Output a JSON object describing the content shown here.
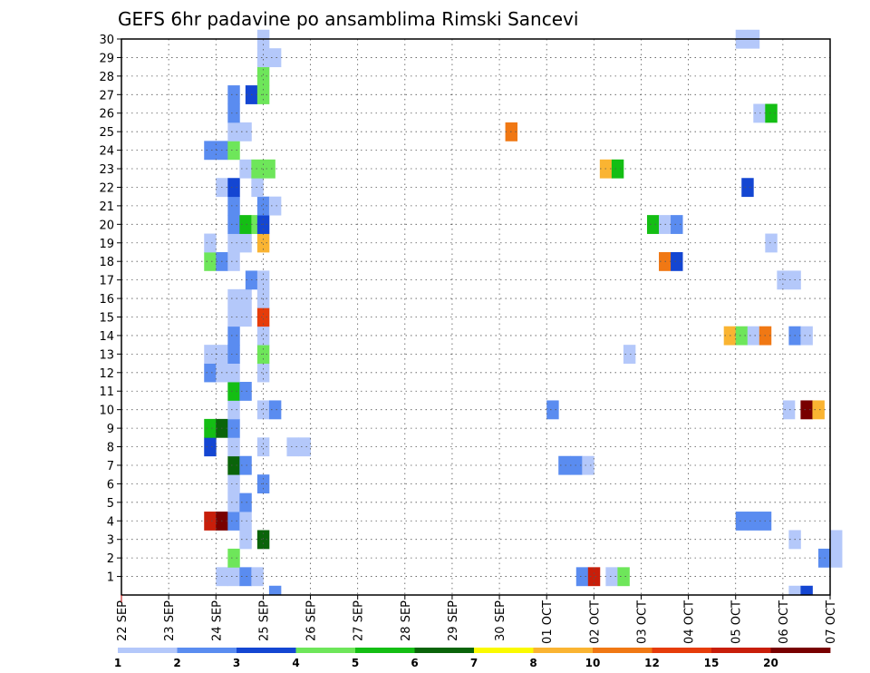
{
  "chart_data": {
    "type": "heatmap",
    "title": "GEFS 6hr padavine po ansamblima Rimski Sancevi",
    "xlabel": "",
    "ylabel": "",
    "x_ticks": [
      "22 SEP",
      "23 SEP",
      "24 SEP",
      "25 SEP",
      "26 SEP",
      "27 SEP",
      "28 SEP",
      "29 SEP",
      "30 SEP",
      "01 OCT",
      "02 OCT",
      "03 OCT",
      "04 OCT",
      "05 OCT",
      "06 OCT",
      "07 OCT"
    ],
    "x_range_days": [
      0,
      15
    ],
    "y_ticks": [
      1,
      2,
      3,
      4,
      5,
      6,
      7,
      8,
      9,
      10,
      11,
      12,
      13,
      14,
      15,
      16,
      17,
      18,
      19,
      20,
      21,
      22,
      23,
      24,
      25,
      26,
      27,
      28,
      29,
      30
    ],
    "grid": true,
    "colorbar": {
      "labels": [
        "1",
        "2",
        "3",
        "4",
        "5",
        "6",
        "7",
        "8",
        "10",
        "12",
        "15",
        "20"
      ],
      "colors": [
        "#b4c8fa",
        "#5a8cf0",
        "#1446d2",
        "#6ee65a",
        "#14be14",
        "#0a640a",
        "#fafa00",
        "#fab432",
        "#f07814",
        "#e63c0a",
        "#c81e0a",
        "#780000"
      ]
    },
    "cells": [
      {
        "m": 1,
        "d": 2.0,
        "c": 1
      },
      {
        "m": 1,
        "d": 2.25,
        "c": 1
      },
      {
        "m": 1,
        "d": 2.5,
        "c": 2
      },
      {
        "m": 1,
        "d": 2.75,
        "c": 1
      },
      {
        "m": 1,
        "d": 9.625,
        "c": 2
      },
      {
        "m": 1,
        "d": 9.875,
        "c": 11
      },
      {
        "m": 1,
        "d": 10.25,
        "c": 1
      },
      {
        "m": 1,
        "d": 10.5,
        "c": 4
      },
      {
        "m": 2,
        "d": 2.25,
        "c": 4
      },
      {
        "m": 2,
        "d": 14.75,
        "c": 2
      },
      {
        "m": 2,
        "d": 15.0,
        "c": 1
      },
      {
        "m": 3,
        "d": 2.5,
        "c": 1
      },
      {
        "m": 3,
        "d": 2.875,
        "c": 6
      },
      {
        "m": 3,
        "d": 14.125,
        "c": 1
      },
      {
        "m": 3,
        "d": 15.0,
        "c": 1
      },
      {
        "m": 4,
        "d": 1.75,
        "c": 11
      },
      {
        "m": 4,
        "d": 2.0,
        "c": 12
      },
      {
        "m": 4,
        "d": 2.25,
        "c": 2
      },
      {
        "m": 4,
        "d": 2.5,
        "c": 1
      },
      {
        "m": 4,
        "d": 13.0,
        "c": 2
      },
      {
        "m": 4,
        "d": 13.25,
        "c": 2
      },
      {
        "m": 4,
        "d": 13.5,
        "c": 2
      },
      {
        "m": 5,
        "d": 2.25,
        "c": 1
      },
      {
        "m": 5,
        "d": 2.5,
        "c": 2
      },
      {
        "m": 6,
        "d": 2.25,
        "c": 1
      },
      {
        "m": 6,
        "d": 2.875,
        "c": 2
      },
      {
        "m": 7,
        "d": 2.25,
        "c": 6
      },
      {
        "m": 7,
        "d": 2.5,
        "c": 2
      },
      {
        "m": 7,
        "d": 9.25,
        "c": 2
      },
      {
        "m": 7,
        "d": 9.5,
        "c": 2
      },
      {
        "m": 7,
        "d": 9.75,
        "c": 1
      },
      {
        "m": 8,
        "d": 1.75,
        "c": 3
      },
      {
        "m": 8,
        "d": 2.25,
        "c": 1
      },
      {
        "m": 8,
        "d": 2.875,
        "c": 1
      },
      {
        "m": 8,
        "d": 3.5,
        "c": 1
      },
      {
        "m": 8,
        "d": 3.75,
        "c": 1
      },
      {
        "m": 9,
        "d": 1.75,
        "c": 5
      },
      {
        "m": 9,
        "d": 2.0,
        "c": 6
      },
      {
        "m": 9,
        "d": 2.25,
        "c": 2
      },
      {
        "m": 10,
        "d": 2.25,
        "c": 1
      },
      {
        "m": 10,
        "d": 2.875,
        "c": 1
      },
      {
        "m": 10,
        "d": 3.125,
        "c": 2
      },
      {
        "m": 10,
        "d": 9.0,
        "c": 2
      },
      {
        "m": 10,
        "d": 14.0,
        "c": 1
      },
      {
        "m": 10,
        "d": 14.375,
        "c": 12
      },
      {
        "m": 10,
        "d": 14.625,
        "c": 8
      },
      {
        "m": 11,
        "d": 2.25,
        "c": 5
      },
      {
        "m": 11,
        "d": 2.5,
        "c": 2
      },
      {
        "m": 12,
        "d": 1.75,
        "c": 2
      },
      {
        "m": 12,
        "d": 2.0,
        "c": 1
      },
      {
        "m": 12,
        "d": 2.25,
        "c": 1
      },
      {
        "m": 12,
        "d": 2.875,
        "c": 1
      },
      {
        "m": 13,
        "d": 1.75,
        "c": 1
      },
      {
        "m": 13,
        "d": 2.0,
        "c": 1
      },
      {
        "m": 13,
        "d": 2.25,
        "c": 2
      },
      {
        "m": 13,
        "d": 2.875,
        "c": 4
      },
      {
        "m": 13,
        "d": 10.625,
        "c": 1
      },
      {
        "m": 14,
        "d": 2.25,
        "c": 2
      },
      {
        "m": 14,
        "d": 2.875,
        "c": 1
      },
      {
        "m": 14,
        "d": 12.75,
        "c": 8
      },
      {
        "m": 14,
        "d": 13.0,
        "c": 4
      },
      {
        "m": 14,
        "d": 13.25,
        "c": 1
      },
      {
        "m": 14,
        "d": 13.5,
        "c": 9
      },
      {
        "m": 14,
        "d": 14.125,
        "c": 2
      },
      {
        "m": 14,
        "d": 14.375,
        "c": 1
      },
      {
        "m": 15,
        "d": 2.25,
        "c": 1
      },
      {
        "m": 15,
        "d": 2.5,
        "c": 1
      },
      {
        "m": 15,
        "d": 2.875,
        "c": 10
      },
      {
        "m": 16,
        "d": 2.25,
        "c": 1
      },
      {
        "m": 16,
        "d": 2.5,
        "c": 1
      },
      {
        "m": 16,
        "d": 2.875,
        "c": 1
      },
      {
        "m": 17,
        "d": 2.625,
        "c": 2
      },
      {
        "m": 17,
        "d": 2.875,
        "c": 1
      },
      {
        "m": 17,
        "d": 13.875,
        "c": 1
      },
      {
        "m": 17,
        "d": 14.125,
        "c": 1
      },
      {
        "m": 18,
        "d": 1.75,
        "c": 4
      },
      {
        "m": 18,
        "d": 2.0,
        "c": 2
      },
      {
        "m": 18,
        "d": 2.25,
        "c": 1
      },
      {
        "m": 18,
        "d": 11.375,
        "c": 9
      },
      {
        "m": 18,
        "d": 11.625,
        "c": 3
      },
      {
        "m": 19,
        "d": 1.75,
        "c": 1
      },
      {
        "m": 19,
        "d": 2.25,
        "c": 1
      },
      {
        "m": 19,
        "d": 2.5,
        "c": 1
      },
      {
        "m": 19,
        "d": 2.875,
        "c": 8
      },
      {
        "m": 19,
        "d": 13.625,
        "c": 1
      },
      {
        "m": 20,
        "d": 2.25,
        "c": 2
      },
      {
        "m": 20,
        "d": 2.5,
        "c": 5
      },
      {
        "m": 20,
        "d": 2.75,
        "c": 4
      },
      {
        "m": 20,
        "d": 2.875,
        "c": 3
      },
      {
        "m": 20,
        "d": 11.125,
        "c": 5
      },
      {
        "m": 20,
        "d": 11.375,
        "c": 1
      },
      {
        "m": 20,
        "d": 11.625,
        "c": 2
      },
      {
        "m": 21,
        "d": 2.25,
        "c": 2
      },
      {
        "m": 21,
        "d": 2.875,
        "c": 2
      },
      {
        "m": 21,
        "d": 3.125,
        "c": 1
      },
      {
        "m": 22,
        "d": 2.0,
        "c": 1
      },
      {
        "m": 22,
        "d": 2.25,
        "c": 3
      },
      {
        "m": 22,
        "d": 2.75,
        "c": 1
      },
      {
        "m": 22,
        "d": 13.125,
        "c": 3
      },
      {
        "m": 23,
        "d": 2.5,
        "c": 1
      },
      {
        "m": 23,
        "d": 2.75,
        "c": 4
      },
      {
        "m": 23,
        "d": 3.0,
        "c": 4
      },
      {
        "m": 23,
        "d": 10.125,
        "c": 8
      },
      {
        "m": 23,
        "d": 10.375,
        "c": 5
      },
      {
        "m": 24,
        "d": 1.75,
        "c": 2
      },
      {
        "m": 24,
        "d": 2.0,
        "c": 2
      },
      {
        "m": 24,
        "d": 2.25,
        "c": 4
      },
      {
        "m": 25,
        "d": 2.25,
        "c": 1
      },
      {
        "m": 25,
        "d": 2.5,
        "c": 1
      },
      {
        "m": 25,
        "d": 8.125,
        "c": 9
      },
      {
        "m": 26,
        "d": 2.25,
        "c": 2
      },
      {
        "m": 26,
        "d": 13.375,
        "c": 1
      },
      {
        "m": 26,
        "d": 13.625,
        "c": 5
      },
      {
        "m": 27,
        "d": 2.25,
        "c": 2
      },
      {
        "m": 27,
        "d": 2.625,
        "c": 3
      },
      {
        "m": 27,
        "d": 2.875,
        "c": 4
      },
      {
        "m": 28,
        "d": 2.875,
        "c": 4
      },
      {
        "m": 29,
        "d": 2.875,
        "c": 1
      },
      {
        "m": 29,
        "d": 3.125,
        "c": 1
      },
      {
        "m": 30,
        "d": 2.875,
        "c": 1
      },
      {
        "m": 30,
        "d": 13.0,
        "c": 1
      },
      {
        "m": 30,
        "d": 13.25,
        "c": 1
      }
    ],
    "edge_marks": [
      {
        "d": 3.125,
        "c": 2
      },
      {
        "d": 14.125,
        "c": 1
      },
      {
        "d": 14.375,
        "c": 3
      }
    ]
  }
}
